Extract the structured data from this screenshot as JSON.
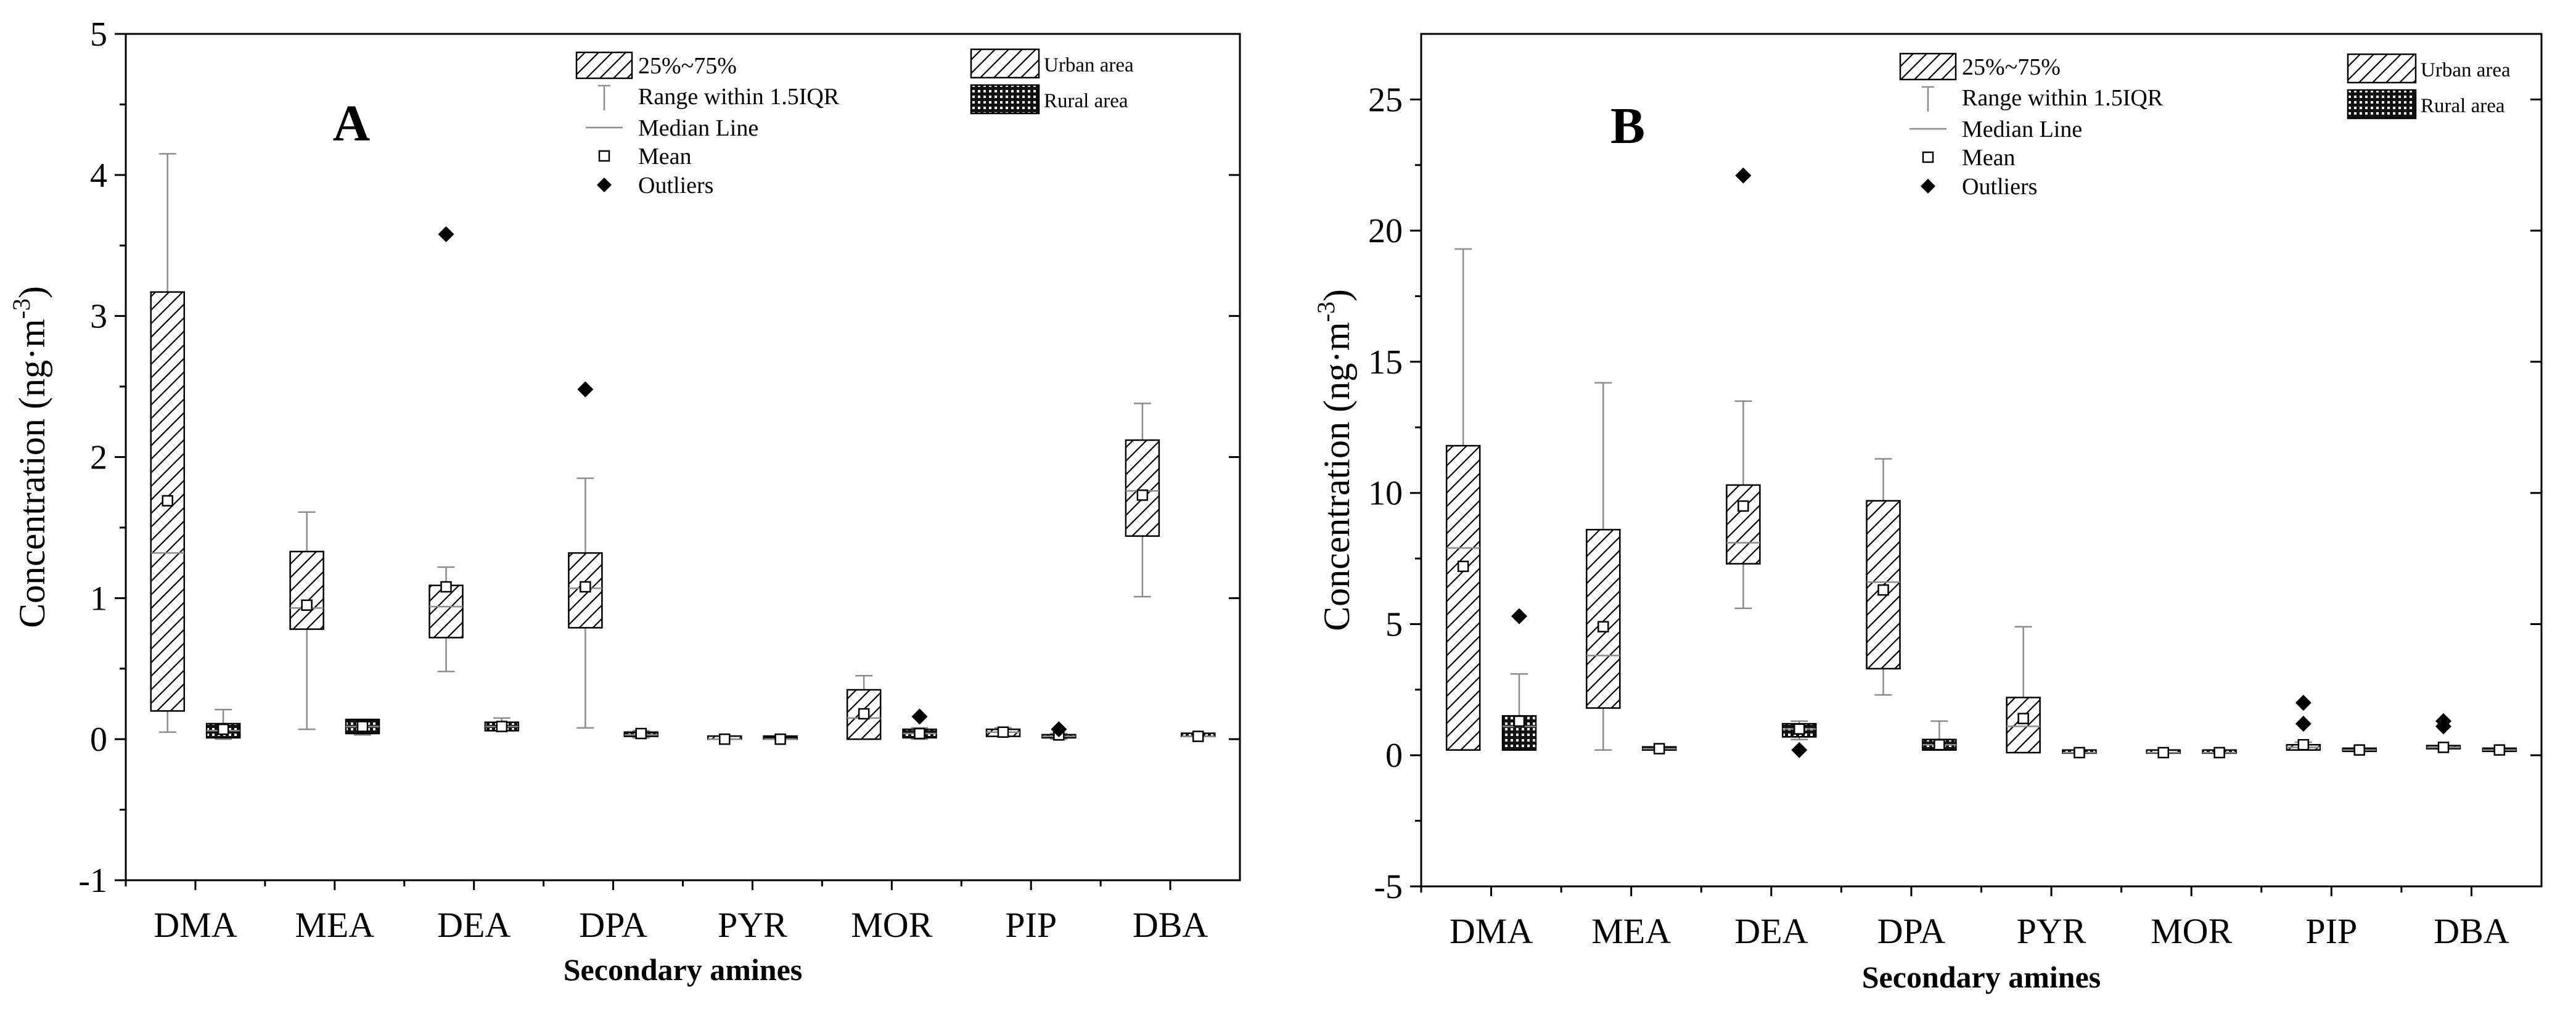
{
  "chart_data": [
    {
      "type": "box",
      "panel_label": "A",
      "ylabel": "Concentration (ng·m⁻³)",
      "ylabel_base": "Concentration (ng·m",
      "ylabel_sup": "-3",
      "ylabel_close": ")",
      "xlabel": "Secondary amines",
      "ylim": [
        -1,
        5
      ],
      "yticks": [
        "-1",
        "0",
        "1",
        "2",
        "3",
        "4",
        "5"
      ],
      "categories": [
        "DMA",
        "MEA",
        "DEA",
        "DPA",
        "PYR",
        "MOR",
        "PIP",
        "DBA"
      ],
      "series": [
        {
          "name": "Urban area",
          "pattern": "hatch",
          "boxes": [
            {
              "category": "DMA",
              "min": 0.05,
              "q1": 0.2,
              "median": 1.32,
              "mean": 1.69,
              "q3": 3.17,
              "max": 4.15,
              "outliers": []
            },
            {
              "category": "MEA",
              "min": 0.07,
              "q1": 0.78,
              "median": 0.93,
              "mean": 0.95,
              "q3": 1.33,
              "max": 1.61,
              "outliers": []
            },
            {
              "category": "DEA",
              "min": 0.48,
              "q1": 0.72,
              "median": 0.94,
              "mean": 1.08,
              "q3": 1.09,
              "max": 1.22,
              "outliers": [
                3.58
              ]
            },
            {
              "category": "DPA",
              "min": 0.08,
              "q1": 0.79,
              "median": 1.07,
              "mean": 1.08,
              "q3": 1.32,
              "max": 1.85,
              "outliers": [
                2.48
              ]
            },
            {
              "category": "PYR",
              "min": 0.0,
              "q1": 0.0,
              "median": 0.0,
              "mean": 0.0,
              "q3": 0.0,
              "max": 0.0,
              "outliers": []
            },
            {
              "category": "MOR",
              "min": 0.0,
              "q1": 0.0,
              "median": 0.15,
              "mean": 0.18,
              "q3": 0.35,
              "max": 0.45,
              "outliers": []
            },
            {
              "category": "PIP",
              "min": 0.02,
              "q1": 0.02,
              "median": 0.05,
              "mean": 0.05,
              "q3": 0.07,
              "max": 0.08,
              "outliers": []
            },
            {
              "category": "DBA",
              "min": 1.01,
              "q1": 1.44,
              "median": 1.76,
              "mean": 1.73,
              "q3": 2.12,
              "max": 2.38,
              "outliers": []
            }
          ]
        },
        {
          "name": "Rural area",
          "pattern": "dots",
          "boxes": [
            {
              "category": "DMA",
              "min": 0.0,
              "q1": 0.01,
              "median": 0.06,
              "mean": 0.07,
              "q3": 0.11,
              "max": 0.21,
              "outliers": []
            },
            {
              "category": "MEA",
              "min": 0.03,
              "q1": 0.04,
              "median": 0.09,
              "mean": 0.09,
              "q3": 0.14,
              "max": 0.14,
              "outliers": []
            },
            {
              "category": "DEA",
              "min": 0.06,
              "q1": 0.06,
              "median": 0.09,
              "mean": 0.09,
              "q3": 0.12,
              "max": 0.15,
              "outliers": []
            },
            {
              "category": "DPA",
              "min": 0.01,
              "q1": 0.02,
              "median": 0.03,
              "mean": 0.04,
              "q3": 0.05,
              "max": 0.06,
              "outliers": []
            },
            {
              "category": "PYR",
              "min": 0.0,
              "q1": 0.0,
              "median": 0.0,
              "mean": 0.0,
              "q3": 0.0,
              "max": 0.0,
              "outliers": []
            },
            {
              "category": "MOR",
              "min": 0.0,
              "q1": 0.01,
              "median": 0.04,
              "mean": 0.04,
              "q3": 0.07,
              "max": 0.08,
              "outliers": [
                0.16
              ]
            },
            {
              "category": "PIP",
              "min": 0.0,
              "q1": 0.01,
              "median": 0.02,
              "mean": 0.03,
              "q3": 0.03,
              "max": 0.04,
              "outliers": [
                0.07
              ]
            },
            {
              "category": "DBA",
              "min": 0.02,
              "q1": 0.02,
              "median": 0.02,
              "mean": 0.02,
              "q3": 0.02,
              "max": 0.02,
              "outliers": []
            }
          ]
        }
      ]
    },
    {
      "type": "box",
      "panel_label": "B",
      "ylabel": "Concentration (ng·m⁻³)",
      "ylabel_base": "Concentration (ng·m",
      "ylabel_sup": "-3",
      "ylabel_close": ")",
      "xlabel": "Secondary amines",
      "ylim": [
        -5,
        27.5
      ],
      "yticks": [
        "-5",
        "0",
        "5",
        "10",
        "15",
        "20",
        "25"
      ],
      "categories": [
        "DMA",
        "MEA",
        "DEA",
        "DPA",
        "PYR",
        "MOR",
        "PIP",
        "DBA"
      ],
      "series": [
        {
          "name": "Urban area",
          "pattern": "hatch",
          "boxes": [
            {
              "category": "DMA",
              "min": 0.2,
              "q1": 0.2,
              "median": 7.9,
              "mean": 7.2,
              "q3": 11.8,
              "max": 19.3,
              "outliers": []
            },
            {
              "category": "MEA",
              "min": 0.2,
              "q1": 1.8,
              "median": 3.8,
              "mean": 4.9,
              "q3": 8.6,
              "max": 14.2,
              "outliers": []
            },
            {
              "category": "DEA",
              "min": 5.6,
              "q1": 7.3,
              "median": 8.1,
              "mean": 9.5,
              "q3": 10.3,
              "max": 13.5,
              "outliers": [
                22.1
              ]
            },
            {
              "category": "DPA",
              "min": 2.3,
              "q1": 3.3,
              "median": 6.6,
              "mean": 6.3,
              "q3": 9.7,
              "max": 11.3,
              "outliers": []
            },
            {
              "category": "PYR",
              "min": 0.1,
              "q1": 0.1,
              "median": 1.1,
              "mean": 1.4,
              "q3": 2.2,
              "max": 4.9,
              "outliers": []
            },
            {
              "category": "MOR",
              "min": 0.08,
              "q1": 0.08,
              "median": 0.1,
              "mean": 0.1,
              "q3": 0.12,
              "max": 0.12,
              "outliers": []
            },
            {
              "category": "PIP",
              "min": 0.2,
              "q1": 0.2,
              "median": 0.3,
              "mean": 0.4,
              "q3": 0.4,
              "max": 0.5,
              "outliers": [
                1.2,
                2.0
              ]
            },
            {
              "category": "DBA",
              "min": 0.25,
              "q1": 0.25,
              "median": 0.3,
              "mean": 0.3,
              "q3": 0.35,
              "max": 0.35,
              "outliers": [
                1.1,
                1.3
              ]
            }
          ]
        },
        {
          "name": "Rural area",
          "pattern": "dots",
          "boxes": [
            {
              "category": "DMA",
              "min": 0.2,
              "q1": 0.2,
              "median": 1.1,
              "mean": 1.3,
              "q3": 1.5,
              "max": 3.1,
              "outliers": [
                5.3
              ]
            },
            {
              "category": "MEA",
              "min": 0.2,
              "q1": 0.2,
              "median": 0.25,
              "mean": 0.25,
              "q3": 0.3,
              "max": 0.3,
              "outliers": []
            },
            {
              "category": "DEA",
              "min": 0.6,
              "q1": 0.7,
              "median": 1.0,
              "mean": 1.0,
              "q3": 1.2,
              "max": 1.3,
              "outliers": [
                0.2
              ]
            },
            {
              "category": "DPA",
              "min": 0.2,
              "q1": 0.2,
              "median": 0.4,
              "mean": 0.4,
              "q3": 0.6,
              "max": 1.3,
              "outliers": []
            },
            {
              "category": "PYR",
              "min": 0.08,
              "q1": 0.08,
              "median": 0.1,
              "mean": 0.1,
              "q3": 0.12,
              "max": 0.12,
              "outliers": []
            },
            {
              "category": "MOR",
              "min": 0.08,
              "q1": 0.08,
              "median": 0.1,
              "mean": 0.1,
              "q3": 0.12,
              "max": 0.12,
              "outliers": []
            },
            {
              "category": "PIP",
              "min": 0.15,
              "q1": 0.15,
              "median": 0.2,
              "mean": 0.2,
              "q3": 0.25,
              "max": 0.25,
              "outliers": []
            },
            {
              "category": "DBA",
              "min": 0.15,
              "q1": 0.15,
              "median": 0.2,
              "mean": 0.2,
              "q3": 0.25,
              "max": 0.25,
              "outliers": []
            }
          ]
        }
      ]
    }
  ],
  "legend": {
    "iqr": "25%~75%",
    "range": "Range within 1.5IQR",
    "median": "Median Line",
    "mean": "Mean",
    "outliers": "Outliers",
    "urban": "Urban area",
    "rural": "Rural area",
    "placement": "top"
  },
  "colors": {
    "ink": "#000000",
    "whisker": "#8c8c8c",
    "median": "#8c8c8c",
    "background": "#ffffff"
  }
}
